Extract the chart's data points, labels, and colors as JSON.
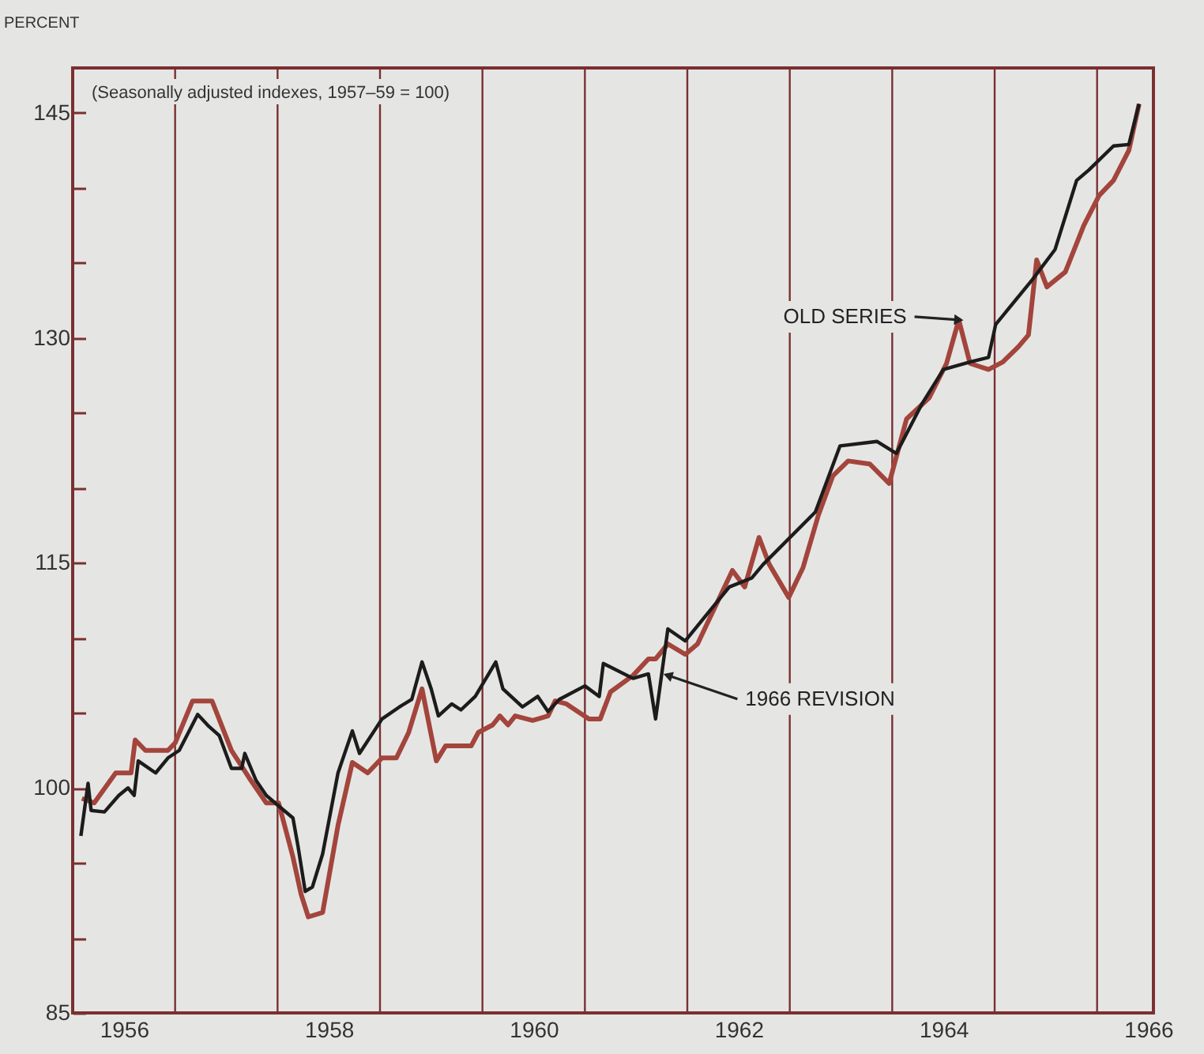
{
  "chart_data": {
    "type": "line",
    "ylabel": "PERCENT",
    "xlim": [
      1956,
      1966.55
    ],
    "xticks": [
      {
        "value": 1956.5,
        "label": "1956"
      },
      {
        "value": 1958.5,
        "label": "1958"
      },
      {
        "value": 1960.5,
        "label": "1960"
      },
      {
        "value": 1962.5,
        "label": "1962"
      },
      {
        "value": 1964.5,
        "label": "1964"
      },
      {
        "value": 1966.5,
        "label": "1966"
      }
    ],
    "ylim": [
      85,
      148
    ],
    "yticks": [
      85,
      {
        "value": 90,
        "label": null
      },
      {
        "value": 95,
        "label": null
      },
      100,
      {
        "value": 105,
        "label": null
      },
      {
        "value": 110,
        "label": null
      },
      115,
      {
        "value": 120,
        "label": null
      },
      {
        "value": 125,
        "label": null
      },
      130,
      {
        "value": 135,
        "label": null
      },
      {
        "value": 140,
        "label": null
      },
      145
    ],
    "ref_lines": [
      {
        "axis": "x",
        "value": 1957,
        "color": "#7a3030"
      },
      {
        "axis": "x",
        "value": 1958,
        "color": "#7a3030"
      },
      {
        "axis": "x",
        "value": 1959,
        "color": "#7a3030"
      },
      {
        "axis": "x",
        "value": 1960,
        "color": "#7a3030"
      },
      {
        "axis": "x",
        "value": 1961,
        "color": "#7a3030"
      },
      {
        "axis": "x",
        "value": 1962,
        "color": "#7a3030"
      },
      {
        "axis": "x",
        "value": 1963,
        "color": "#7a3030"
      },
      {
        "axis": "x",
        "value": 1964,
        "color": "#7a3030"
      },
      {
        "axis": "x",
        "value": 1965,
        "color": "#7a3030"
      },
      {
        "axis": "x",
        "value": 1966,
        "color": "#7a3030"
      }
    ],
    "annotations": [
      "(Seasonally adjusted indexes, 1957–59 = 100)",
      {
        "text": "OLD SERIES",
        "x": 1964.65,
        "y": 131.2
      },
      {
        "text": "1966 REVISION",
        "x": 1961.81,
        "y": 107.5
      }
    ],
    "series": [
      {
        "color": "#a3453c",
        "x": [
          1956.09,
          1956.21,
          1956.42,
          1956.57,
          1956.61,
          1956.71,
          1956.93,
          1957.0,
          1957.17,
          1957.36,
          1957.55,
          1957.72,
          1957.89,
          1958.01,
          1958.15,
          1958.23,
          1958.3,
          1958.44,
          1958.59,
          1958.73,
          1958.88,
          1959.02,
          1959.16,
          1959.28,
          1959.41,
          1959.55,
          1959.64,
          1959.89,
          1959.96,
          1960.1,
          1960.17,
          1960.25,
          1960.32,
          1960.49,
          1960.64,
          1960.71,
          1960.82,
          1961.04,
          1961.15,
          1961.25,
          1961.47,
          1961.62,
          1961.69,
          1961.81,
          1961.98,
          1962.1,
          1962.19,
          1962.44,
          1962.56,
          1962.7,
          1962.8,
          1962.99,
          1963.13,
          1963.28,
          1963.42,
          1963.57,
          1963.78,
          1963.97,
          1964.14,
          1964.36,
          1964.53,
          1964.65,
          1964.76,
          1964.94,
          1965.08,
          1965.23,
          1965.33,
          1965.41,
          1965.51,
          1965.69,
          1965.87,
          1966.02,
          1966.16,
          1966.31,
          1966.41
        ],
        "values": [
          99.3,
          99,
          101,
          101,
          103.2,
          102.5,
          102.5,
          103,
          105.8,
          105.8,
          102.5,
          100.7,
          99,
          99,
          95.4,
          92.9,
          91.4,
          91.7,
          97.5,
          101.7,
          101,
          102,
          102,
          103.7,
          106.6,
          101.8,
          102.8,
          102.8,
          103.7,
          104.2,
          104.8,
          104.2,
          104.8,
          104.5,
          104.8,
          105.8,
          105.6,
          104.6,
          104.6,
          106.4,
          107.5,
          108.6,
          108.6,
          109.6,
          108.9,
          109.6,
          110.9,
          114.5,
          113.4,
          116.7,
          114.9,
          112.7,
          114.7,
          118.2,
          120.8,
          121.8,
          121.6,
          120.3,
          124.6,
          126,
          128.3,
          131.2,
          128.3,
          127.9,
          128.4,
          129.4,
          130.2,
          135.2,
          133.4,
          134.4,
          137.5,
          139.5,
          140.5,
          142.5,
          145.6
        ]
      },
      {
        "color": "#1c1c1c",
        "x": [
          1956.08,
          1956.15,
          1956.18,
          1956.31,
          1956.45,
          1956.54,
          1956.6,
          1956.64,
          1956.81,
          1956.93,
          1957.04,
          1957.22,
          1957.33,
          1957.43,
          1957.55,
          1957.65,
          1957.68,
          1957.79,
          1957.89,
          1958.01,
          1958.15,
          1958.2,
          1958.27,
          1958.34,
          1958.44,
          1958.59,
          1958.73,
          1958.8,
          1959.02,
          1959.19,
          1959.31,
          1959.41,
          1959.5,
          1959.57,
          1959.7,
          1959.79,
          1959.93,
          1960.13,
          1960.2,
          1960.39,
          1960.54,
          1960.64,
          1960.75,
          1961.0,
          1961.14,
          1961.18,
          1961.47,
          1961.62,
          1961.69,
          1961.81,
          1961.98,
          1962.17,
          1962.41,
          1962.63,
          1962.74,
          1963.25,
          1963.49,
          1963.85,
          1964.04,
          1964.29,
          1964.5,
          1964.76,
          1964.94,
          1965.01,
          1965.37,
          1965.59,
          1965.8,
          1965.92,
          1966.16,
          1966.31,
          1966.41
        ],
        "values": [
          96.8,
          100.3,
          98.5,
          98.4,
          99.5,
          100,
          99.5,
          101.8,
          101,
          102,
          102.5,
          104.9,
          104.1,
          103.5,
          101.3,
          101.3,
          102.3,
          100.5,
          99.5,
          98.8,
          98,
          96.1,
          93.1,
          93.4,
          95.6,
          101,
          103.8,
          102.3,
          104.6,
          105.4,
          105.9,
          108.4,
          106.6,
          104.8,
          105.6,
          105.2,
          106.1,
          108.4,
          106.6,
          105.4,
          106.1,
          105.1,
          105.9,
          106.8,
          106.1,
          108.3,
          107.3,
          107.6,
          104.6,
          110.6,
          109.8,
          111.4,
          113.4,
          114,
          114.9,
          118.4,
          122.8,
          123.1,
          122.3,
          125.6,
          127.9,
          128.4,
          128.7,
          130.9,
          133.9,
          135.9,
          140.5,
          141.2,
          142.8,
          142.9,
          145.6
        ]
      }
    ]
  }
}
